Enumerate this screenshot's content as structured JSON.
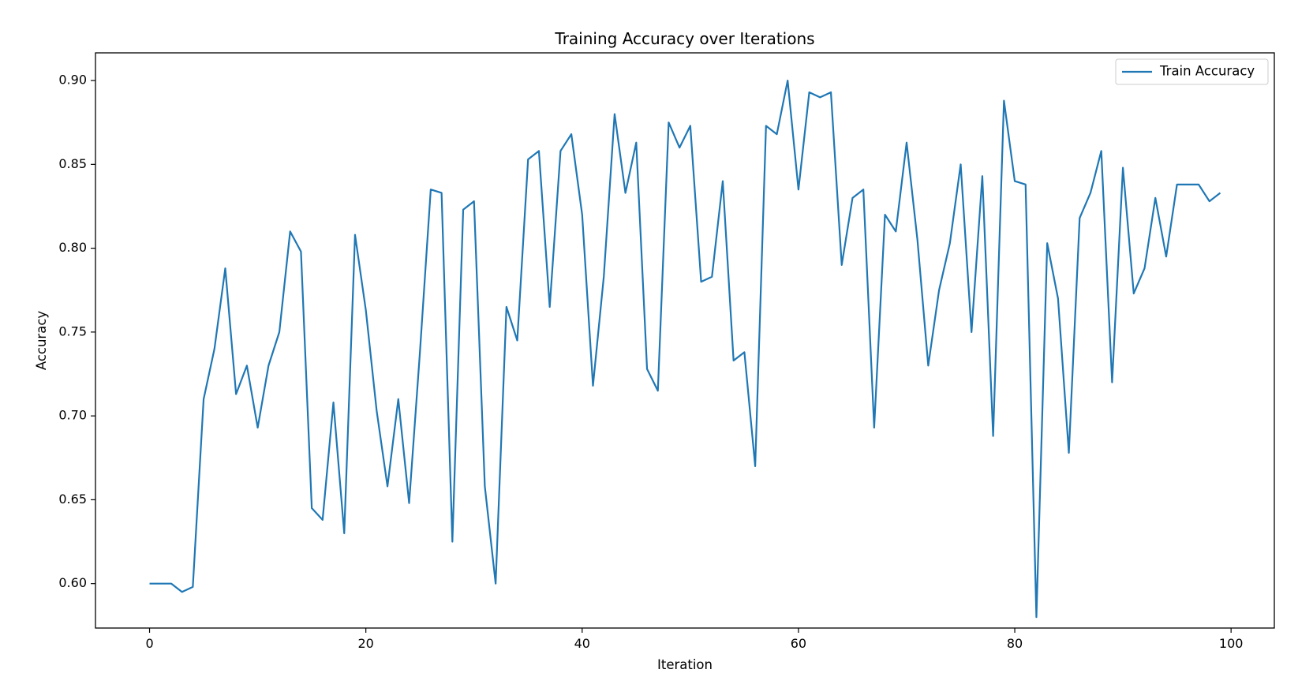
{
  "chart_data": {
    "type": "line",
    "title": "Training Accuracy over Iterations",
    "xlabel": "Iteration",
    "ylabel": "Accuracy",
    "xlim": [
      -5,
      104
    ],
    "ylim": [
      0.5735,
      0.9165
    ],
    "xticks": [
      0,
      20,
      40,
      60,
      80,
      100
    ],
    "xtick_labels": [
      "0",
      "20",
      "40",
      "60",
      "80",
      "100"
    ],
    "yticks": [
      0.6,
      0.65,
      0.7,
      0.75,
      0.8,
      0.85,
      0.9
    ],
    "ytick_labels": [
      "0.60",
      "0.65",
      "0.70",
      "0.75",
      "0.80",
      "0.85",
      "0.90"
    ],
    "grid": false,
    "legend_position": "top-right",
    "series": [
      {
        "name": "Train Accuracy",
        "color": "#1f77b4",
        "x": [
          0,
          1,
          2,
          3,
          4,
          5,
          6,
          7,
          8,
          9,
          10,
          11,
          12,
          13,
          14,
          15,
          16,
          17,
          18,
          19,
          20,
          21,
          22,
          23,
          24,
          25,
          26,
          27,
          28,
          29,
          30,
          31,
          32,
          33,
          34,
          35,
          36,
          37,
          38,
          39,
          40,
          41,
          42,
          43,
          44,
          45,
          46,
          47,
          48,
          49,
          50,
          51,
          52,
          53,
          54,
          55,
          56,
          57,
          58,
          59,
          60,
          61,
          62,
          63,
          64,
          65,
          66,
          67,
          68,
          69,
          70,
          71,
          72,
          73,
          74,
          75,
          76,
          77,
          78,
          79,
          80,
          81,
          82,
          83,
          84,
          85,
          86,
          87,
          88,
          89,
          90,
          91,
          92,
          93,
          94,
          95,
          96,
          97,
          98,
          99
        ],
        "values": [
          0.6,
          0.6,
          0.6,
          0.595,
          0.598,
          0.71,
          0.74,
          0.788,
          0.713,
          0.73,
          0.693,
          0.73,
          0.75,
          0.81,
          0.798,
          0.645,
          0.638,
          0.708,
          0.63,
          0.808,
          0.763,
          0.703,
          0.658,
          0.71,
          0.648,
          0.738,
          0.835,
          0.833,
          0.625,
          0.823,
          0.828,
          0.658,
          0.6,
          0.765,
          0.745,
          0.853,
          0.858,
          0.765,
          0.858,
          0.868,
          0.82,
          0.718,
          0.783,
          0.88,
          0.833,
          0.863,
          0.728,
          0.715,
          0.875,
          0.86,
          0.873,
          0.78,
          0.783,
          0.84,
          0.733,
          0.738,
          0.67,
          0.873,
          0.868,
          0.9,
          0.835,
          0.893,
          0.89,
          0.893,
          0.79,
          0.83,
          0.835,
          0.693,
          0.82,
          0.81,
          0.863,
          0.805,
          0.73,
          0.775,
          0.803,
          0.85,
          0.75,
          0.843,
          0.688,
          0.888,
          0.84,
          0.838,
          0.58,
          0.803,
          0.77,
          0.678,
          0.818,
          0.833,
          0.858,
          0.72,
          0.848,
          0.773,
          0.788,
          0.83,
          0.795,
          0.838,
          0.838,
          0.838,
          0.828,
          0.833
        ]
      }
    ]
  }
}
